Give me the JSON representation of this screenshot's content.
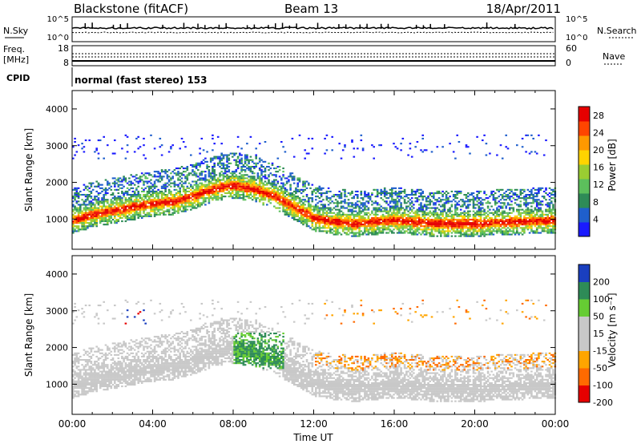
{
  "header": {
    "title": "Blackstone (fitACF)",
    "beam": "Beam 13",
    "date": "18/Apr/2011"
  },
  "status_panels": {
    "nsky_label": "N.Sky",
    "nsky_ticks": [
      "10^5",
      "10^0"
    ],
    "nsearch_label": "N.Search",
    "nsearch_ticks": [
      "10^5",
      "10^0"
    ],
    "freq_label": "Freq.",
    "freq_unit": "[MHz]",
    "freq_ticks": [
      "18",
      "8"
    ],
    "nave_label": "Nave",
    "nave_ticks": [
      "60",
      "0"
    ],
    "cpid_label": "CPID",
    "cpid_value": "normal (fast stereo) 153"
  },
  "colors": {
    "power": [
      "#1a1aff",
      "#1f5fcc",
      "#2e8b57",
      "#5cbf5c",
      "#9acd32",
      "#ffd400",
      "#ff9900",
      "#ff4500",
      "#e60000"
    ],
    "velocity": [
      "#e60000",
      "#ff6a00",
      "#ffa500",
      "#c8c8c8",
      "#c8c8c8",
      "#66cc33",
      "#2e8b57",
      "#1a3fbf"
    ]
  },
  "chart_data": [
    {
      "type": "heatmap",
      "panel": "power",
      "ylabel": "Slant Range [km]",
      "xlabel": "Time UT",
      "x_ticks": [
        "00:00",
        "04:00",
        "08:00",
        "12:00",
        "16:00",
        "20:00",
        "00:00"
      ],
      "y_ticks": [
        "1000",
        "2000",
        "3000",
        "4000"
      ],
      "xlim": [
        0,
        24
      ],
      "ylim": [
        180,
        4500
      ],
      "colorbar_label": "Power [dB]",
      "colorbar_ticks": [
        "4",
        "8",
        "12",
        "16",
        "20",
        "24",
        "28"
      ],
      "colorbar_range": [
        0,
        30
      ],
      "main_band_km": [
        [
          0,
          950
        ],
        [
          1,
          1100
        ],
        [
          2,
          1200
        ],
        [
          3,
          1300
        ],
        [
          4,
          1400
        ],
        [
          5,
          1450
        ],
        [
          6,
          1600
        ],
        [
          7,
          1800
        ],
        [
          8,
          1900
        ],
        [
          9,
          1800
        ],
        [
          10,
          1600
        ],
        [
          11,
          1300
        ],
        [
          12,
          1000
        ],
        [
          13,
          900
        ],
        [
          14,
          850
        ],
        [
          16,
          950
        ],
        [
          18,
          850
        ],
        [
          20,
          850
        ],
        [
          22,
          900
        ],
        [
          24,
          950
        ]
      ]
    },
    {
      "type": "heatmap",
      "panel": "velocity",
      "ylabel": "Slant Range [km]",
      "xlabel": "Time UT",
      "x_ticks": [
        "00:00",
        "04:00",
        "08:00",
        "12:00",
        "16:00",
        "20:00",
        "00:00"
      ],
      "y_ticks": [
        "1000",
        "2000",
        "3000",
        "4000"
      ],
      "xlim": [
        0,
        24
      ],
      "ylim": [
        180,
        4500
      ],
      "colorbar_label": "Velocity [m s⁻¹]",
      "colorbar_ticks": [
        "200",
        "100",
        "50",
        "15",
        "-15",
        "-50",
        "-100",
        "-200"
      ]
    }
  ]
}
